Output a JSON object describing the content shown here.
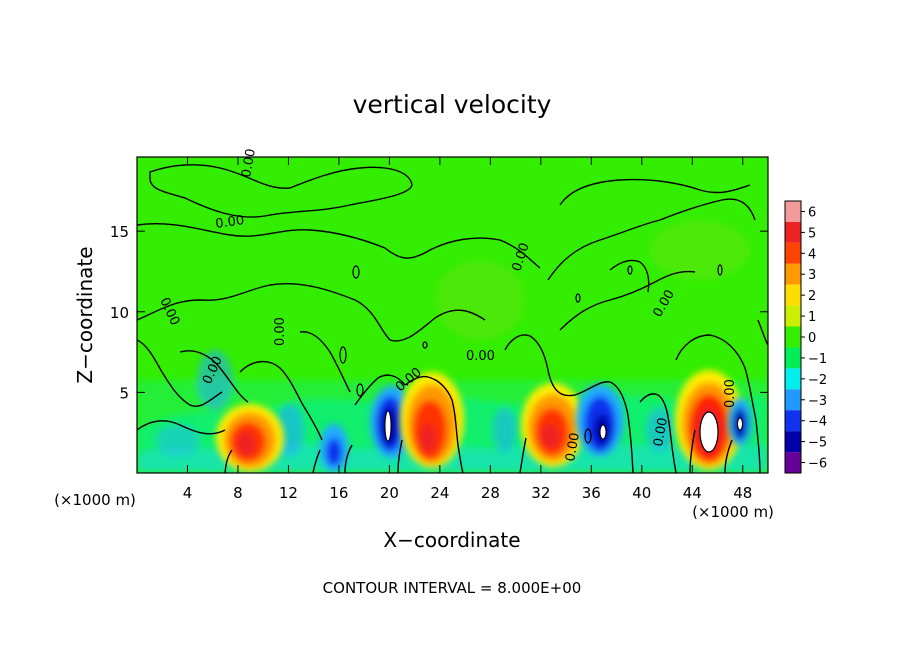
{
  "chart_data": {
    "type": "heatmap",
    "title": "vertical velocity",
    "xlabel": "X−coordinate",
    "ylabel": "Z−coordinate",
    "x_unit_left": "(×1000 m)",
    "x_unit_right": "(×1000 m)",
    "xlim": [
      0,
      50
    ],
    "ylim": [
      0,
      19.6
    ],
    "x_ticks": [
      4,
      8,
      12,
      16,
      20,
      24,
      28,
      32,
      36,
      40,
      44,
      48
    ],
    "x_tick_labels": [
      "4",
      "8",
      "12",
      "16",
      "20",
      "24",
      "28",
      "32",
      "36",
      "40",
      "44",
      "48"
    ],
    "y_ticks": [
      5,
      10,
      15
    ],
    "y_tick_labels": [
      "5",
      "10",
      "15"
    ],
    "footer": "CONTOUR INTERVAL = 8.000E+00",
    "contour_label": "0.00",
    "colorbar": {
      "levels": [
        6,
        5,
        4,
        3,
        2,
        1,
        0,
        -1,
        -2,
        -3,
        -4,
        -5,
        -6
      ],
      "labels": [
        "6",
        "5",
        "4",
        "3",
        "2",
        "1",
        "0",
        "−1",
        "−2",
        "−3",
        "−4",
        "−5",
        "−6"
      ],
      "colors": [
        "#f29a9a",
        "#ee2222",
        "#ff4400",
        "#ff9900",
        "#ffdd00",
        "#ccee00",
        "#33ee00",
        "#00ee55",
        "#00eeee",
        "#2299ff",
        "#1133ee",
        "#0000aa",
        "#660099"
      ]
    },
    "features": [
      {
        "x": 9.0,
        "z": 2.4,
        "value": 5
      },
      {
        "x": 19.8,
        "z": 3.0,
        "value": -5
      },
      {
        "x": 23.0,
        "z": 3.2,
        "value": 5
      },
      {
        "x": 33.2,
        "z": 2.8,
        "value": 5
      },
      {
        "x": 36.8,
        "z": 3.0,
        "value": -5
      },
      {
        "x": 45.0,
        "z": 3.0,
        "value": 6
      },
      {
        "x": 47.8,
        "z": 3.2,
        "value": -4
      },
      {
        "x": 15.5,
        "z": 1.5,
        "value": -4
      },
      {
        "x": 4.5,
        "z": 2.0,
        "value": -2
      }
    ]
  }
}
